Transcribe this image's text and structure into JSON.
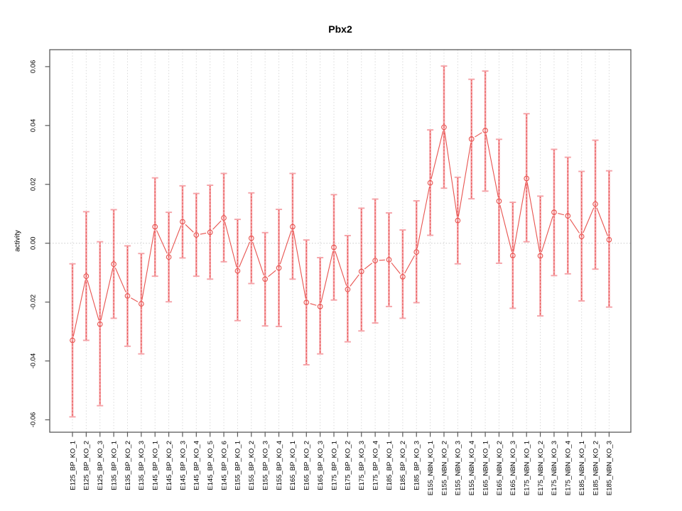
{
  "chart_data": {
    "type": "line",
    "title": "Pbx2",
    "ylabel": "activity",
    "xlabel": "",
    "ylim": [
      -0.065,
      0.065
    ],
    "yticks": [
      0.06,
      0.04,
      0.02,
      0.0,
      -0.02,
      -0.04,
      -0.06
    ],
    "ytick_labels": [
      "0.06",
      "0.04",
      "0.02",
      "0.00",
      "-0.02",
      "-0.04",
      "-0.06"
    ],
    "grid": "vertical dotted gridline at every category, dotted horizontal line at y=0",
    "legend_position": "none",
    "series_name": "activity with error bars",
    "points": [
      {
        "label": "E125_BP_KO_1",
        "mean": -0.033,
        "lo": -0.059,
        "hi": -0.007
      },
      {
        "label": "E125_BP_KO_2",
        "mean": -0.0112,
        "lo": -0.033,
        "hi": 0.0107
      },
      {
        "label": "E125_BP_KO_3",
        "mean": -0.0275,
        "lo": -0.0552,
        "hi": 0.0005
      },
      {
        "label": "E135_BP_KO_1",
        "mean": -0.0071,
        "lo": -0.0255,
        "hi": 0.0114
      },
      {
        "label": "E135_BP_KO_2",
        "mean": -0.0179,
        "lo": -0.035,
        "hi": -0.0009
      },
      {
        "label": "E135_BP_KO_3",
        "mean": -0.0206,
        "lo": -0.0376,
        "hi": -0.0035
      },
      {
        "label": "E145_BP_KO_1",
        "mean": 0.0056,
        "lo": -0.0112,
        "hi": 0.0222
      },
      {
        "label": "E145_BP_KO_2",
        "mean": -0.0047,
        "lo": -0.0199,
        "hi": 0.0105
      },
      {
        "label": "E145_BP_KO_3",
        "mean": 0.0073,
        "lo": -0.005,
        "hi": 0.0195
      },
      {
        "label": "E145_BP_KO_4",
        "mean": 0.0028,
        "lo": -0.0112,
        "hi": 0.0169
      },
      {
        "label": "E145_BP_KO_5",
        "mean": 0.0037,
        "lo": -0.0122,
        "hi": 0.0197
      },
      {
        "label": "E145_BP_KO_6",
        "mean": 0.0086,
        "lo": -0.0063,
        "hi": 0.0237
      },
      {
        "label": "E155_BP_KO_1",
        "mean": -0.0094,
        "lo": -0.0263,
        "hi": 0.0081
      },
      {
        "label": "E155_BP_KO_2",
        "mean": 0.0017,
        "lo": -0.0137,
        "hi": 0.0171
      },
      {
        "label": "E155_BP_KO_3",
        "mean": -0.0122,
        "lo": -0.0281,
        "hi": 0.0036
      },
      {
        "label": "E155_BP_KO_4",
        "mean": -0.0084,
        "lo": -0.0283,
        "hi": 0.0115
      },
      {
        "label": "E165_BP_KO_1",
        "mean": 0.0056,
        "lo": -0.0122,
        "hi": 0.0237
      },
      {
        "label": "E165_BP_KO_2",
        "mean": -0.0201,
        "lo": -0.0413,
        "hi": 0.0011
      },
      {
        "label": "E165_BP_KO_3",
        "mean": -0.0215,
        "lo": -0.0376,
        "hi": -0.0049
      },
      {
        "label": "E175_BP_KO_1",
        "mean": -0.0014,
        "lo": -0.0193,
        "hi": 0.0165
      },
      {
        "label": "E175_BP_KO_2",
        "mean": -0.0157,
        "lo": -0.0335,
        "hi": 0.0026
      },
      {
        "label": "E175_BP_KO_3",
        "mean": -0.0096,
        "lo": -0.0298,
        "hi": 0.0119
      },
      {
        "label": "E175_BP_KO_4",
        "mean": -0.0059,
        "lo": -0.0271,
        "hi": 0.015
      },
      {
        "label": "E185_BP_KO_1",
        "mean": -0.0056,
        "lo": -0.0215,
        "hi": 0.0103
      },
      {
        "label": "E185_BP_KO_2",
        "mean": -0.0114,
        "lo": -0.0255,
        "hi": 0.0045
      },
      {
        "label": "E185_BP_KO_3",
        "mean": -0.003,
        "lo": -0.0202,
        "hi": 0.0144
      },
      {
        "label": "E155_NBN_KO_1",
        "mean": 0.0205,
        "lo": 0.0027,
        "hi": 0.0385
      },
      {
        "label": "E155_NBN_KO_2",
        "mean": 0.0394,
        "lo": 0.0187,
        "hi": 0.0602
      },
      {
        "label": "E155_NBN_KO_3",
        "mean": 0.0077,
        "lo": -0.007,
        "hi": 0.0224
      },
      {
        "label": "E155_NBN_KO_4",
        "mean": 0.0354,
        "lo": 0.0151,
        "hi": 0.0557
      },
      {
        "label": "E165_NBN_KO_1",
        "mean": 0.0383,
        "lo": 0.0177,
        "hi": 0.0585
      },
      {
        "label": "E165_NBN_KO_2",
        "mean": 0.0143,
        "lo": -0.0068,
        "hi": 0.0353
      },
      {
        "label": "E165_NBN_KO_3",
        "mean": -0.0042,
        "lo": -0.0221,
        "hi": 0.0139
      },
      {
        "label": "E175_NBN_KO_1",
        "mean": 0.022,
        "lo": 0.0005,
        "hi": 0.044
      },
      {
        "label": "E175_NBN_KO_2",
        "mean": -0.0043,
        "lo": -0.0247,
        "hi": 0.016
      },
      {
        "label": "E175_NBN_KO_3",
        "mean": 0.0105,
        "lo": -0.011,
        "hi": 0.0319
      },
      {
        "label": "E175_NBN_KO_4",
        "mean": 0.0093,
        "lo": -0.0104,
        "hi": 0.0292
      },
      {
        "label": "E185_NBN_KO_1",
        "mean": 0.0023,
        "lo": -0.0196,
        "hi": 0.0244
      },
      {
        "label": "E185_NBN_KO_2",
        "mean": 0.0133,
        "lo": -0.0088,
        "hi": 0.035
      },
      {
        "label": "E185_NBN_KO_3",
        "mean": 0.0012,
        "lo": -0.0217,
        "hi": 0.0246
      }
    ],
    "colors": {
      "line": "#e8534f",
      "point": "#e8534f",
      "error_bar_solid": "#f5a3a8",
      "error_bar_dashed": "#e8534f",
      "grid": "#d9d9d9",
      "zero_line": "#c9c9c9",
      "frame": "#5a5a5a",
      "text": "#000000",
      "background": "#ffffff"
    }
  }
}
